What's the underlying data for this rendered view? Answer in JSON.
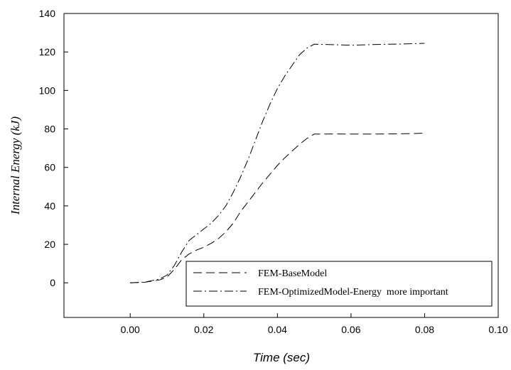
{
  "chart_data": {
    "type": "line",
    "xlabel": "Time (sec)",
    "ylabel": "Internal Energy (kJ)",
    "xlim": [
      -0.018,
      0.1
    ],
    "ylim": [
      -18,
      140
    ],
    "xticks": [
      0.0,
      0.02,
      0.04,
      0.06,
      0.08,
      0.1
    ],
    "xtick_labels": [
      "0.00",
      "0.02",
      "0.04",
      "0.06",
      "0.08",
      "0.10"
    ],
    "yticks": [
      0,
      20,
      40,
      60,
      80,
      100,
      120,
      140
    ],
    "ytick_labels": [
      "0",
      "20",
      "40",
      "60",
      "80",
      "100",
      "120",
      "140"
    ],
    "grid": false,
    "legend_position": "bottom-right",
    "series": [
      {
        "name": "FEM-BaseModel",
        "dash": "dashed",
        "x": [
          0,
          0.004,
          0.008,
          0.01,
          0.012,
          0.014,
          0.016,
          0.018,
          0.02,
          0.022,
          0.024,
          0.026,
          0.028,
          0.03,
          0.032,
          0.034,
          0.036,
          0.038,
          0.04,
          0.042,
          0.044,
          0.046,
          0.048,
          0.05,
          0.055,
          0.06,
          0.065,
          0.07,
          0.075,
          0.08
        ],
        "y": [
          0,
          0.3,
          1.5,
          3,
          7,
          12,
          15,
          17,
          18.5,
          20.5,
          23,
          26.5,
          31,
          37,
          42,
          47,
          52,
          56.5,
          61,
          65,
          68.5,
          72,
          75,
          77.3,
          77.4,
          77.3,
          77.3,
          77.4,
          77.5,
          77.8
        ]
      },
      {
        "name": "FEM-OptimizedModel-Energy  more important",
        "dash": "dashdot",
        "x": [
          0,
          0.004,
          0.008,
          0.01,
          0.012,
          0.014,
          0.016,
          0.018,
          0.02,
          0.022,
          0.024,
          0.026,
          0.028,
          0.03,
          0.032,
          0.034,
          0.036,
          0.038,
          0.04,
          0.042,
          0.044,
          0.046,
          0.048,
          0.05,
          0.055,
          0.06,
          0.065,
          0.07,
          0.075,
          0.08
        ],
        "y": [
          0,
          0.4,
          2,
          4,
          9,
          16,
          22,
          25,
          28,
          31,
          35,
          40,
          47,
          55,
          64,
          74,
          84,
          93,
          101,
          107.5,
          113,
          118.5,
          122,
          124,
          123.8,
          123.5,
          123.8,
          124,
          124.2,
          124.5
        ]
      }
    ]
  }
}
